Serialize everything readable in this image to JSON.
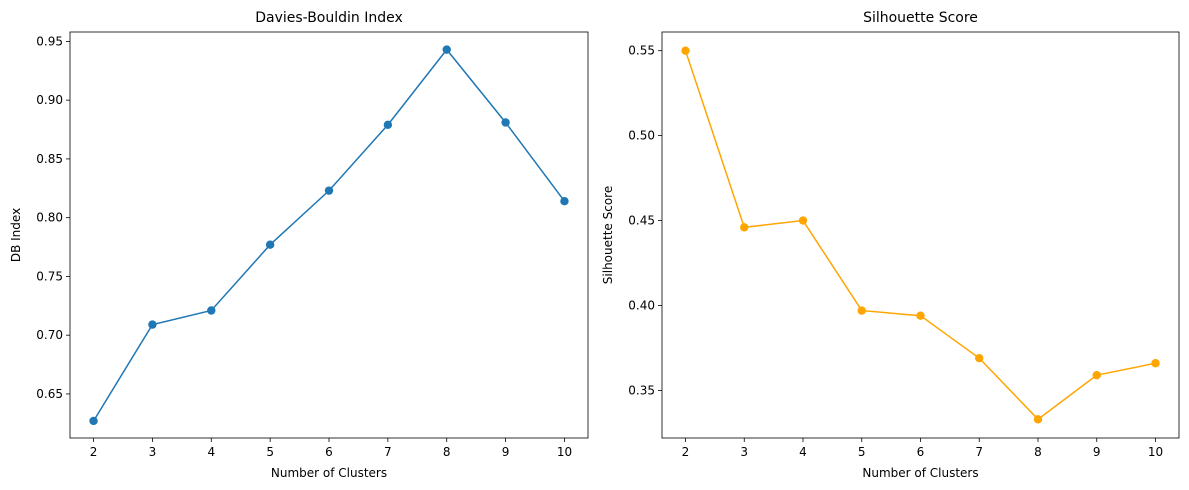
{
  "chart_data": [
    {
      "type": "line",
      "title": "Davies-Bouldin Index",
      "xlabel": "Number of Clusters",
      "ylabel": "DB Index",
      "x": [
        2,
        3,
        4,
        5,
        6,
        7,
        8,
        9,
        10
      ],
      "series": [
        {
          "values": [
            0.627,
            0.709,
            0.721,
            0.777,
            0.823,
            0.879,
            0.943,
            0.881,
            0.814
          ],
          "color": "#1f77b4",
          "marker": "circle"
        }
      ],
      "xlim": [
        1.6,
        10.4
      ],
      "ylim": [
        0.6125,
        0.958
      ],
      "xticks": [
        2,
        3,
        4,
        5,
        6,
        7,
        8,
        9,
        10
      ],
      "yticks": [
        0.65,
        0.7,
        0.75,
        0.8,
        0.85,
        0.9,
        0.95
      ],
      "ytick_labels": [
        "0.65",
        "0.70",
        "0.75",
        "0.80",
        "0.85",
        "0.90",
        "0.95"
      ],
      "grid": false
    },
    {
      "type": "line",
      "title": "Silhouette Score",
      "xlabel": "Number of Clusters",
      "ylabel": "Silhouette Score",
      "x": [
        2,
        3,
        4,
        5,
        6,
        7,
        8,
        9,
        10
      ],
      "series": [
        {
          "values": [
            0.55,
            0.446,
            0.45,
            0.397,
            0.394,
            0.369,
            0.333,
            0.359,
            0.366
          ],
          "color": "#ffa500",
          "marker": "circle"
        }
      ],
      "xlim": [
        1.6,
        10.4
      ],
      "ylim": [
        0.322,
        0.561
      ],
      "xticks": [
        2,
        3,
        4,
        5,
        6,
        7,
        8,
        9,
        10
      ],
      "yticks": [
        0.35,
        0.4,
        0.45,
        0.5,
        0.55
      ],
      "ytick_labels": [
        "0.35",
        "0.40",
        "0.45",
        "0.50",
        "0.55"
      ],
      "grid": false
    }
  ]
}
